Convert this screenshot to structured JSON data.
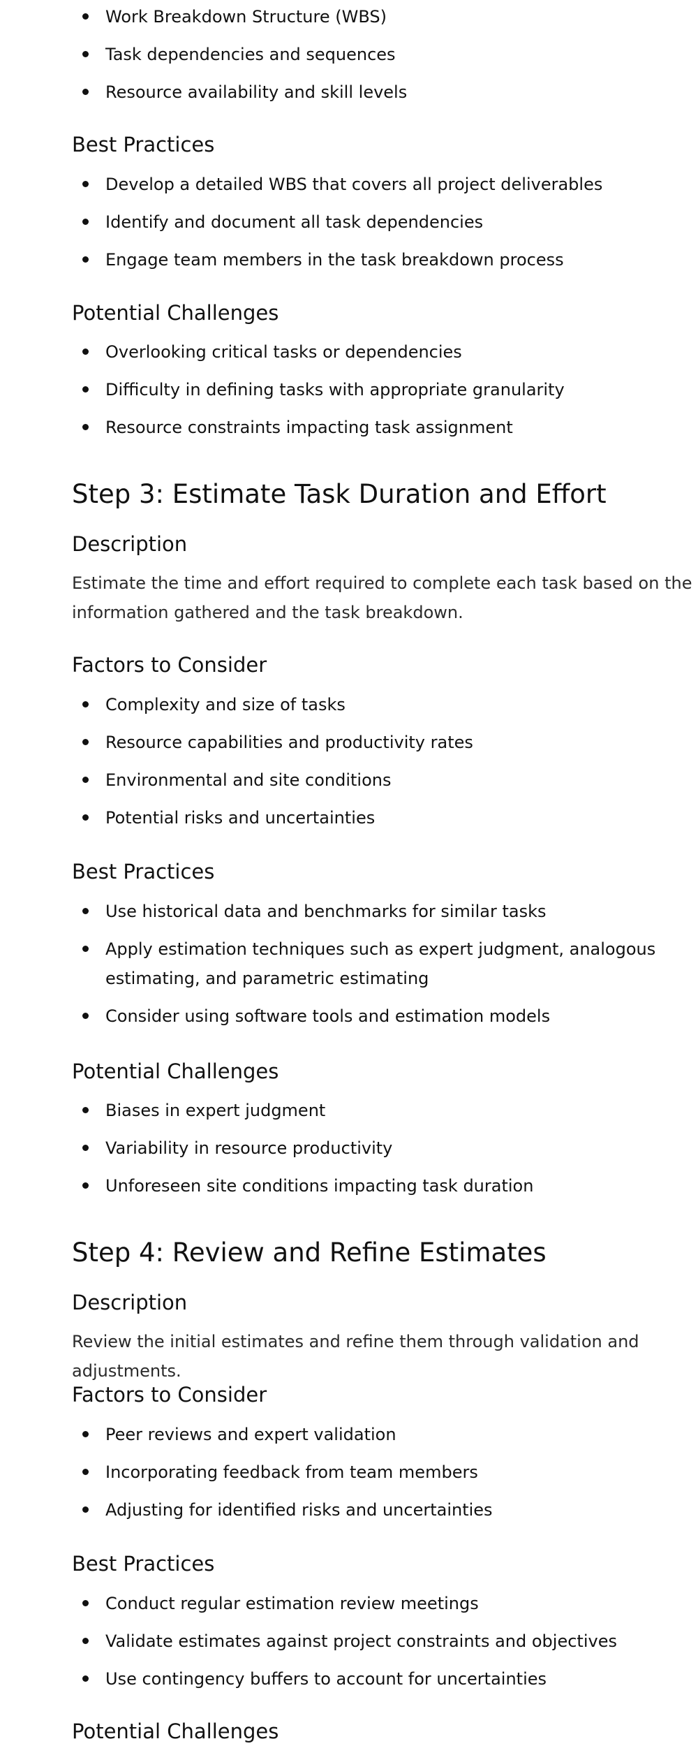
{
  "step2_tail": {
    "factors": [
      "Work Breakdown Structure (WBS)",
      "Task dependencies and sequences",
      "Resource availability and skill levels"
    ],
    "best_practices_heading": "Best Practices",
    "best_practices": [
      "Develop a detailed WBS that covers all project deliverables",
      "Identify and document all task dependencies",
      "Engage team members in the task breakdown process"
    ],
    "challenges_heading": "Potential Challenges",
    "challenges": [
      "Overlooking critical tasks or dependencies",
      "Difficulty in defining tasks with appropriate granularity",
      "Resource constraints impacting task assignment"
    ]
  },
  "step3": {
    "title": "Step 3: Estimate Task Duration and Effort",
    "description_heading": "Description",
    "description": "Estimate the time and effort required to complete each task based on the information gathered and the task breakdown.",
    "factors_heading": "Factors to Consider",
    "factors": [
      "Complexity and size of tasks",
      "Resource capabilities and productivity rates",
      "Environmental and site conditions",
      "Potential risks and uncertainties"
    ],
    "best_practices_heading": "Best Practices",
    "best_practices": [
      "Use historical data and benchmarks for similar tasks",
      "Apply estimation techniques such as expert judgment, analogous estimating, and parametric estimating",
      "Consider using software tools and estimation models"
    ],
    "challenges_heading": "Potential Challenges",
    "challenges": [
      "Biases in expert judgment",
      "Variability in resource productivity",
      "Unforeseen site conditions impacting task duration"
    ]
  },
  "step4": {
    "title": "Step 4: Review and Refine Estimates",
    "description_heading": "Description",
    "description": "Review the initial estimates and refine them through validation and adjustments.",
    "factors_heading": "Factors to Consider",
    "factors": [
      "Peer reviews and expert validation",
      "Incorporating feedback from team members",
      "Adjusting for identified risks and uncertainties"
    ],
    "best_practices_heading": "Best Practices",
    "best_practices": [
      "Conduct regular estimation review meetings",
      "Validate estimates against project constraints and objectives",
      "Use contingency buffers to account for uncertainties"
    ],
    "challenges_heading": "Potential Challenges"
  }
}
